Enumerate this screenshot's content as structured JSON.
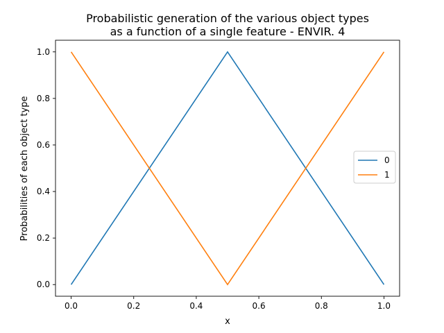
{
  "chart_data": {
    "type": "line",
    "title_line1": "Probabilistic generation of the various object types",
    "title_line2": "as a function of a single feature - ENVIR. 4",
    "xlabel": "x",
    "ylabel": "Probabilities of each object type",
    "xlim": [
      -0.05,
      1.05
    ],
    "ylim": [
      -0.05,
      1.05
    ],
    "xticks": [
      0.0,
      0.2,
      0.4,
      0.6,
      0.8,
      1.0
    ],
    "xtick_labels": [
      "0.0",
      "0.2",
      "0.4",
      "0.6",
      "0.8",
      "1.0"
    ],
    "yticks": [
      0.0,
      0.2,
      0.4,
      0.6,
      0.8,
      1.0
    ],
    "ytick_labels": [
      "0.0",
      "0.2",
      "0.4",
      "0.6",
      "0.8",
      "1.0"
    ],
    "grid": false,
    "legend_position": "center-right",
    "series": [
      {
        "name": "0",
        "color": "#1f77b4",
        "x": [
          0.0,
          0.5,
          1.0
        ],
        "y": [
          0.0,
          1.0,
          0.0
        ]
      },
      {
        "name": "1",
        "color": "#ff7f0e",
        "x": [
          0.0,
          0.5,
          1.0
        ],
        "y": [
          1.0,
          0.0,
          1.0
        ]
      }
    ]
  }
}
